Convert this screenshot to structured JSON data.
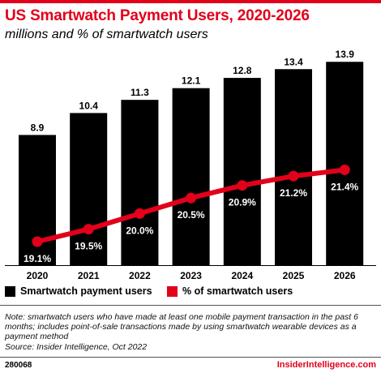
{
  "header": {
    "title": "US Smartwatch Payment Users, 2020-2026",
    "subtitle": "millions and % of smartwatch users"
  },
  "chart_data": {
    "type": "bar",
    "categories": [
      "2020",
      "2021",
      "2022",
      "2023",
      "2024",
      "2025",
      "2026"
    ],
    "series": [
      {
        "name": "Smartwatch payment users",
        "type": "bar",
        "values": [
          8.9,
          10.4,
          11.3,
          12.1,
          12.8,
          13.4,
          13.9
        ],
        "labels": [
          "8.9",
          "10.4",
          "11.3",
          "12.1",
          "12.8",
          "13.4",
          "13.9"
        ],
        "color": "#000000"
      },
      {
        "name": "% of smartwatch users",
        "type": "line",
        "values": [
          19.1,
          19.5,
          20.0,
          20.5,
          20.9,
          21.2,
          21.4
        ],
        "labels": [
          "19.1%",
          "19.5%",
          "20.0%",
          "20.5%",
          "20.9%",
          "21.2%",
          "21.4%"
        ],
        "color": "#e2001a"
      }
    ],
    "legend_position": "bottom",
    "grid": false
  },
  "legend": {
    "bar_label": "Smartwatch payment users",
    "line_label": "% of smartwatch users"
  },
  "footer": {
    "note": "Note: smartwatch users who have made at least one mobile payment transaction in the past 6 months; includes point-of-sale transactions made by using smartwatch wearable devices as a payment method",
    "source": "Source: Insider Intelligence, Oct 2022",
    "chart_id": "280068",
    "brand": "InsiderIntelligence.com"
  },
  "colors": {
    "accent": "#e2001a",
    "bar": "#000000"
  }
}
